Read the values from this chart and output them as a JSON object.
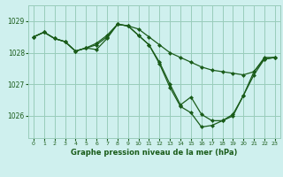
{
  "title": "Graphe pression niveau de la mer (hPa)",
  "background_color": "#cff0ee",
  "grid_color": "#99ccbb",
  "line_color": "#1a5c1a",
  "xlim": [
    -0.5,
    23.5
  ],
  "ylim": [
    1025.3,
    1029.5
  ],
  "yticks": [
    1026,
    1027,
    1028,
    1029
  ],
  "xticks": [
    0,
    1,
    2,
    3,
    4,
    5,
    6,
    7,
    8,
    9,
    10,
    11,
    12,
    13,
    14,
    15,
    16,
    17,
    18,
    19,
    20,
    21,
    22,
    23
  ],
  "series": [
    {
      "x": [
        0,
        1,
        2,
        3,
        4,
        5,
        6,
        7,
        8,
        9,
        10,
        11,
        12,
        13,
        14,
        15,
        16,
        17,
        18,
        19,
        20,
        21,
        22,
        23
      ],
      "y": [
        1028.5,
        1028.65,
        1028.45,
        1028.35,
        1028.05,
        1028.15,
        1028.25,
        1028.5,
        1028.9,
        1028.85,
        1028.75,
        1028.5,
        1028.25,
        1028.0,
        1027.85,
        1027.7,
        1027.55,
        1027.45,
        1027.4,
        1027.35,
        1027.3,
        1027.4,
        1027.8,
        1027.85
      ]
    },
    {
      "x": [
        0,
        1,
        2,
        3,
        4,
        5,
        6,
        7,
        8,
        9,
        10,
        11,
        12,
        13,
        14,
        15,
        16,
        17,
        18,
        19,
        20,
        21,
        22,
        23
      ],
      "y": [
        1028.5,
        1028.65,
        1028.45,
        1028.35,
        1028.05,
        1028.15,
        1028.3,
        1028.55,
        1028.9,
        1028.85,
        1028.55,
        1028.25,
        1027.7,
        1027.0,
        1026.35,
        1026.6,
        1026.05,
        1025.85,
        1025.85,
        1026.05,
        1026.65,
        1027.3,
        1027.8,
        1027.85
      ]
    },
    {
      "x": [
        0,
        1,
        2,
        3,
        4,
        5,
        6,
        7,
        8,
        9,
        10,
        11,
        12,
        13,
        14,
        15,
        16,
        17,
        18,
        19,
        20,
        21,
        22,
        23
      ],
      "y": [
        1028.5,
        1028.65,
        1028.45,
        1028.35,
        1028.05,
        1028.15,
        1028.1,
        1028.45,
        1028.9,
        1028.85,
        1028.55,
        1028.25,
        1027.65,
        1026.9,
        1026.3,
        1026.1,
        1025.65,
        1025.7,
        1025.85,
        1026.0,
        1026.65,
        1027.4,
        1027.85,
        1027.85
      ]
    }
  ]
}
